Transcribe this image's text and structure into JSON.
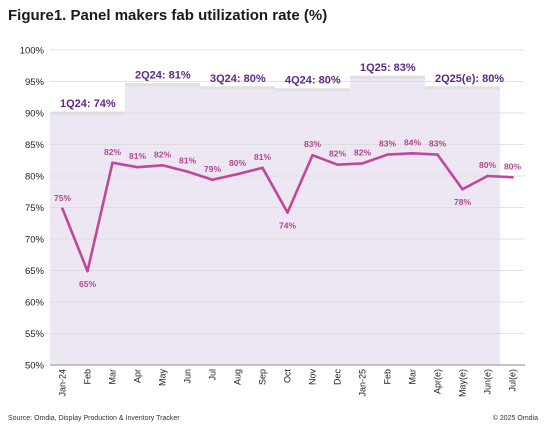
{
  "title": "Figure1. Panel makers fab utilization rate (%)",
  "source": "Source: Omdia, Display Production & Inventory Tracker",
  "copyright": "© 2025 Omdia",
  "colors": {
    "line": "#c0479a",
    "band": "#ede7f3",
    "quarter_text": "#5c2a86",
    "data_label": "#b0488f"
  },
  "chart_data": {
    "type": "line",
    "title": "Figure1. Panel makers fab utilization rate (%)",
    "ylim": [
      50,
      100
    ],
    "yticks": [
      50,
      55,
      60,
      65,
      70,
      75,
      80,
      85,
      90,
      95,
      100
    ],
    "ytick_labels": [
      "50%",
      "55%",
      "60%",
      "65%",
      "70%",
      "75%",
      "80%",
      "85%",
      "90%",
      "95%",
      "100%"
    ],
    "categories": [
      "Jan-24",
      "Feb",
      "Mar",
      "Apr",
      "May",
      "Jun",
      "Jul",
      "Aug",
      "Sep",
      "Oct",
      "Nov",
      "Dec",
      "Jan-25",
      "Feb",
      "Mar",
      "Apr(e)",
      "May(e)",
      "Jun(e)",
      "Jul(e)"
    ],
    "values": [
      74.8,
      64.9,
      82.1,
      81.4,
      81.7,
      80.7,
      79.4,
      80.3,
      81.3,
      74.2,
      83.3,
      81.8,
      82.0,
      83.4,
      83.6,
      83.4,
      77.9,
      80.0,
      79.8
    ],
    "data_labels": [
      "75%",
      "65%",
      "82%",
      "81%",
      "82%",
      "81%",
      "79%",
      "80%",
      "81%",
      "74%",
      "83%",
      "82%",
      "82%",
      "83%",
      "84%",
      "83%",
      "78%",
      "80%",
      "80%"
    ],
    "label_position": [
      "above",
      "below",
      "above",
      "above",
      "above",
      "above",
      "above",
      "above",
      "above",
      "below",
      "above",
      "above",
      "above",
      "above",
      "above",
      "above",
      "below",
      "above",
      "above"
    ],
    "quarters": [
      {
        "label": "1Q24: 74%",
        "value": 90,
        "start": 0,
        "end": 2
      },
      {
        "label": "2Q24: 81%",
        "value": 94.5,
        "start": 3,
        "end": 5
      },
      {
        "label": "3Q24: 80%",
        "value": 94,
        "start": 6,
        "end": 8
      },
      {
        "label": "4Q24: 80%",
        "value": 93.7,
        "start": 9,
        "end": 11
      },
      {
        "label": "1Q25: 83%",
        "value": 95.7,
        "start": 12,
        "end": 14
      },
      {
        "label": "2Q25(e): 80%",
        "value": 94,
        "start": 15,
        "end": 17
      }
    ]
  }
}
